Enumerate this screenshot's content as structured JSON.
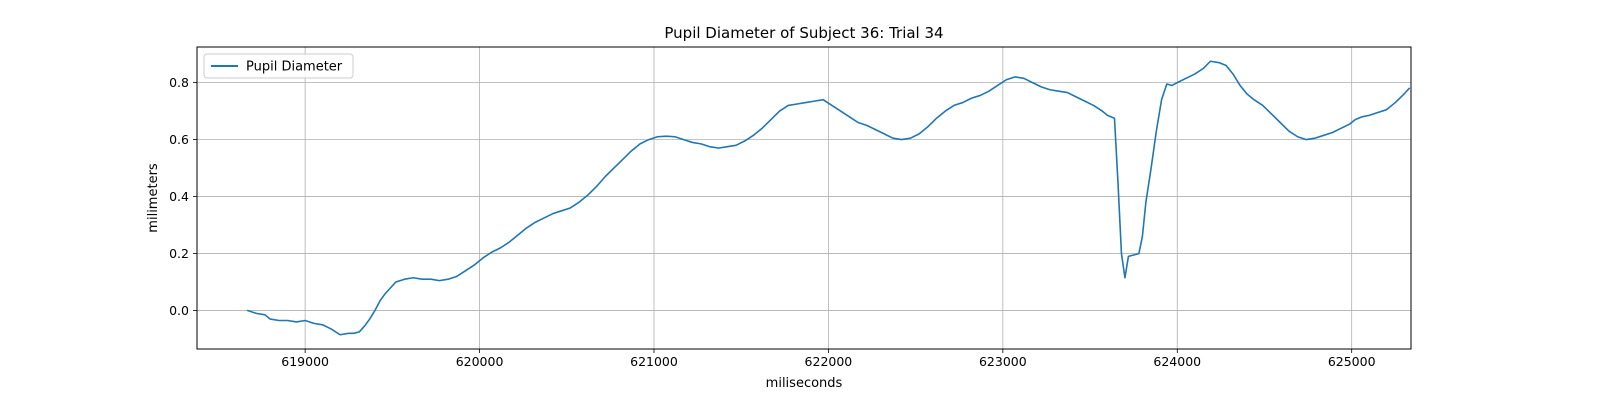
{
  "chart_data": {
    "type": "line",
    "title": "Pupil Diameter of Subject 36: Trial 34",
    "xlabel": "miliseconds",
    "ylabel": "milimeters",
    "xlim": [
      618380,
      625340
    ],
    "ylim": [
      -0.135,
      0.925
    ],
    "xticks": [
      619000,
      620000,
      621000,
      622000,
      623000,
      624000,
      625000
    ],
    "xtick_labels": [
      "619000",
      "620000",
      "621000",
      "622000",
      "623000",
      "624000",
      "625000"
    ],
    "yticks": [
      0.0,
      0.2,
      0.4,
      0.6,
      0.8
    ],
    "ytick_labels": [
      "0.0",
      "0.2",
      "0.4",
      "0.6",
      "0.8"
    ],
    "grid": true,
    "legend_position": "top-left",
    "series": [
      {
        "name": "Pupil Diameter",
        "color": "#1f77b4",
        "points": [
          [
            618670,
            0.0
          ],
          [
            618720,
            -0.01
          ],
          [
            618770,
            -0.015
          ],
          [
            618800,
            -0.03
          ],
          [
            618850,
            -0.035
          ],
          [
            618900,
            -0.035
          ],
          [
            618950,
            -0.04
          ],
          [
            619000,
            -0.035
          ],
          [
            619050,
            -0.045
          ],
          [
            619100,
            -0.05
          ],
          [
            619150,
            -0.065
          ],
          [
            619200,
            -0.085
          ],
          [
            619250,
            -0.08
          ],
          [
            619280,
            -0.08
          ],
          [
            619310,
            -0.075
          ],
          [
            619340,
            -0.055
          ],
          [
            619370,
            -0.03
          ],
          [
            619400,
            0.0
          ],
          [
            619430,
            0.035
          ],
          [
            619460,
            0.06
          ],
          [
            619490,
            0.08
          ],
          [
            619520,
            0.1
          ],
          [
            619570,
            0.11
          ],
          [
            619620,
            0.115
          ],
          [
            619670,
            0.11
          ],
          [
            619720,
            0.11
          ],
          [
            619770,
            0.105
          ],
          [
            619820,
            0.11
          ],
          [
            619870,
            0.12
          ],
          [
            619920,
            0.14
          ],
          [
            619970,
            0.16
          ],
          [
            620020,
            0.185
          ],
          [
            620070,
            0.205
          ],
          [
            620120,
            0.22
          ],
          [
            620170,
            0.24
          ],
          [
            620220,
            0.265
          ],
          [
            620270,
            0.29
          ],
          [
            620320,
            0.31
          ],
          [
            620370,
            0.325
          ],
          [
            620420,
            0.34
          ],
          [
            620470,
            0.35
          ],
          [
            620520,
            0.36
          ],
          [
            620570,
            0.38
          ],
          [
            620620,
            0.405
          ],
          [
            620670,
            0.435
          ],
          [
            620720,
            0.47
          ],
          [
            620770,
            0.5
          ],
          [
            620820,
            0.53
          ],
          [
            620870,
            0.56
          ],
          [
            620920,
            0.585
          ],
          [
            620970,
            0.6
          ],
          [
            621020,
            0.61
          ],
          [
            621070,
            0.612
          ],
          [
            621120,
            0.61
          ],
          [
            621170,
            0.6
          ],
          [
            621220,
            0.59
          ],
          [
            621270,
            0.585
          ],
          [
            621320,
            0.575
          ],
          [
            621370,
            0.57
          ],
          [
            621420,
            0.575
          ],
          [
            621470,
            0.58
          ],
          [
            621520,
            0.595
          ],
          [
            621570,
            0.615
          ],
          [
            621620,
            0.64
          ],
          [
            621670,
            0.67
          ],
          [
            621720,
            0.7
          ],
          [
            621770,
            0.72
          ],
          [
            621820,
            0.725
          ],
          [
            621870,
            0.73
          ],
          [
            621920,
            0.735
          ],
          [
            621970,
            0.74
          ],
          [
            622020,
            0.72
          ],
          [
            622070,
            0.7
          ],
          [
            622120,
            0.68
          ],
          [
            622170,
            0.66
          ],
          [
            622220,
            0.65
          ],
          [
            622270,
            0.635
          ],
          [
            622320,
            0.62
          ],
          [
            622370,
            0.605
          ],
          [
            622420,
            0.6
          ],
          [
            622470,
            0.605
          ],
          [
            622520,
            0.62
          ],
          [
            622570,
            0.645
          ],
          [
            622620,
            0.675
          ],
          [
            622670,
            0.7
          ],
          [
            622720,
            0.72
          ],
          [
            622770,
            0.73
          ],
          [
            622820,
            0.745
          ],
          [
            622870,
            0.755
          ],
          [
            622920,
            0.77
          ],
          [
            622970,
            0.79
          ],
          [
            623020,
            0.81
          ],
          [
            623070,
            0.82
          ],
          [
            623120,
            0.815
          ],
          [
            623170,
            0.8
          ],
          [
            623220,
            0.785
          ],
          [
            623270,
            0.775
          ],
          [
            623320,
            0.77
          ],
          [
            623370,
            0.765
          ],
          [
            623420,
            0.75
          ],
          [
            623470,
            0.735
          ],
          [
            623520,
            0.72
          ],
          [
            623570,
            0.7
          ],
          [
            623600,
            0.685
          ],
          [
            623640,
            0.675
          ],
          [
            623660,
            0.45
          ],
          [
            623680,
            0.2
          ],
          [
            623700,
            0.115
          ],
          [
            623720,
            0.19
          ],
          [
            623750,
            0.195
          ],
          [
            623780,
            0.2
          ],
          [
            623800,
            0.26
          ],
          [
            623820,
            0.38
          ],
          [
            623850,
            0.5
          ],
          [
            623880,
            0.63
          ],
          [
            623910,
            0.74
          ],
          [
            623940,
            0.795
          ],
          [
            623970,
            0.79
          ],
          [
            624000,
            0.8
          ],
          [
            624050,
            0.815
          ],
          [
            624100,
            0.83
          ],
          [
            624150,
            0.85
          ],
          [
            624190,
            0.875
          ],
          [
            624240,
            0.87
          ],
          [
            624280,
            0.86
          ],
          [
            624320,
            0.83
          ],
          [
            624360,
            0.79
          ],
          [
            624400,
            0.76
          ],
          [
            624440,
            0.74
          ],
          [
            624490,
            0.72
          ],
          [
            624540,
            0.69
          ],
          [
            624590,
            0.66
          ],
          [
            624640,
            0.63
          ],
          [
            624690,
            0.61
          ],
          [
            624740,
            0.6
          ],
          [
            624790,
            0.605
          ],
          [
            624840,
            0.615
          ],
          [
            624890,
            0.625
          ],
          [
            624940,
            0.64
          ],
          [
            624990,
            0.655
          ],
          [
            625020,
            0.67
          ],
          [
            625060,
            0.68
          ],
          [
            625100,
            0.685
          ],
          [
            625150,
            0.695
          ],
          [
            625200,
            0.705
          ],
          [
            625250,
            0.73
          ],
          [
            625300,
            0.76
          ],
          [
            625330,
            0.78
          ]
        ]
      }
    ]
  }
}
